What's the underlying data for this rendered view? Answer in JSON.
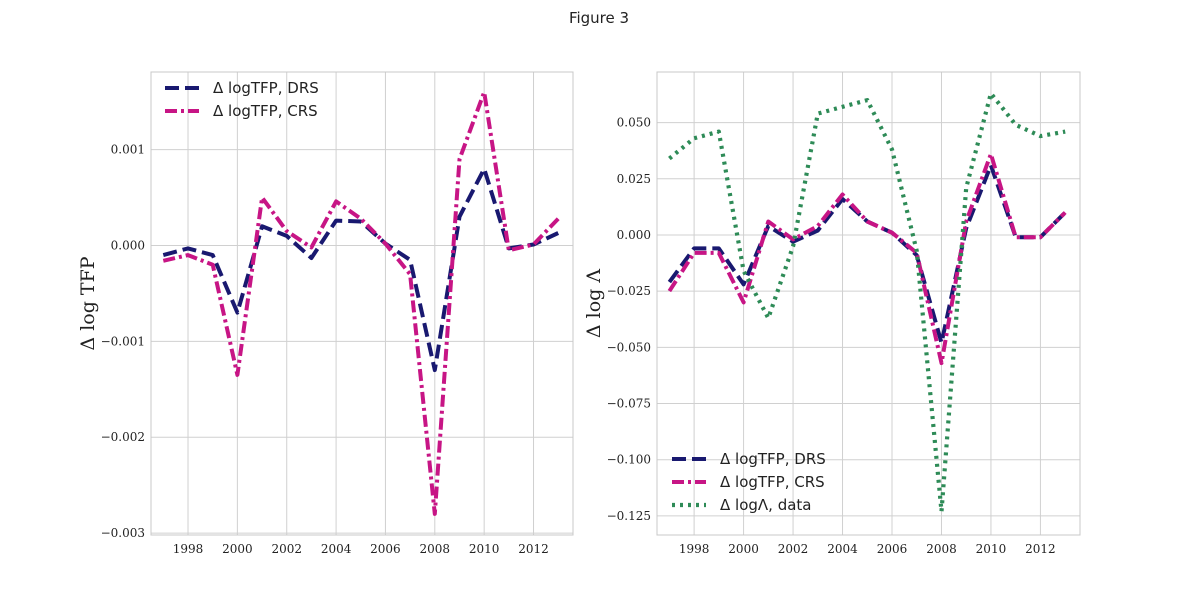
{
  "figure": {
    "title": "Figure 3"
  },
  "chart_data": [
    {
      "type": "line",
      "ylabel": "Δ log TFP",
      "x": [
        1997,
        1998,
        1999,
        2000,
        2001,
        2002,
        2003,
        2004,
        2005,
        2006,
        2007,
        2008,
        2009,
        2010,
        2011,
        2012,
        2013
      ],
      "xticks": [
        1998,
        2000,
        2002,
        2004,
        2006,
        2008,
        2010,
        2012
      ],
      "xtick_labels": [
        "1998",
        "2000",
        "2002",
        "2004",
        "2006",
        "2008",
        "2010",
        "2012"
      ],
      "yticks": [
        -0.003,
        -0.002,
        -0.001,
        0.0,
        0.001
      ],
      "ytick_labels": [
        "−0.003",
        "−0.002",
        "−0.001",
        "0.000",
        "0.001"
      ],
      "xlim": [
        1996.5,
        2013.6
      ],
      "ylim": [
        -0.00302,
        0.00181
      ],
      "grid": true,
      "legend_position": "top-left",
      "series": [
        {
          "name": "Δ logTFP, DRS",
          "color": "#191970",
          "style": "dashed",
          "values": [
            -0.0001,
            -3e-05,
            -0.0001,
            -0.0007,
            0.0002,
            0.0001,
            -0.00013,
            0.00026,
            0.00025,
            2e-05,
            -0.00015,
            -0.0013,
            0.0003,
            0.0008,
            -3e-05,
            1e-05,
            0.00013
          ]
        },
        {
          "name": "Δ logTFP, CRS",
          "color": "#C71585",
          "style": "dashdot",
          "values": [
            -0.00016,
            -0.0001,
            -0.0002,
            -0.00135,
            0.0005,
            0.00015,
            -2e-05,
            0.00046,
            0.00028,
            2e-05,
            -0.0003,
            -0.0028,
            0.0009,
            0.0016,
            -5e-05,
            1e-05,
            0.00028
          ]
        }
      ]
    },
    {
      "type": "line",
      "ylabel": "Δ log Λ",
      "x": [
        1997,
        1998,
        1999,
        2000,
        2001,
        2002,
        2003,
        2004,
        2005,
        2006,
        2007,
        2008,
        2009,
        2010,
        2011,
        2012,
        2013
      ],
      "xticks": [
        1998,
        2000,
        2002,
        2004,
        2006,
        2008,
        2010,
        2012
      ],
      "xtick_labels": [
        "1998",
        "2000",
        "2002",
        "2004",
        "2006",
        "2008",
        "2010",
        "2012"
      ],
      "yticks": [
        -0.125,
        -0.1,
        -0.075,
        -0.05,
        -0.025,
        0.0,
        0.025,
        0.05
      ],
      "ytick_labels": [
        "−0.125",
        "−0.100",
        "−0.075",
        "−0.050",
        "−0.025",
        "0.000",
        "0.025",
        "0.050"
      ],
      "xlim": [
        1996.5,
        2013.6
      ],
      "ylim": [
        -0.1335,
        0.0725
      ],
      "grid": true,
      "legend_position": "bottom-left",
      "series": [
        {
          "name": "Δ logTFP, DRS",
          "color": "#191970",
          "style": "dashed",
          "values": [
            -0.021,
            -0.006,
            -0.006,
            -0.022,
            0.004,
            -0.003,
            0.002,
            0.016,
            0.006,
            0.001,
            -0.009,
            -0.048,
            0.003,
            0.031,
            -0.001,
            -0.001,
            0.01
          ]
        },
        {
          "name": "Δ logTFP, CRS",
          "color": "#C71585",
          "style": "dashdot",
          "values": [
            -0.025,
            -0.008,
            -0.008,
            -0.03,
            0.006,
            -0.002,
            0.004,
            0.018,
            0.006,
            0.001,
            -0.008,
            -0.057,
            0.006,
            0.036,
            -0.001,
            -0.001,
            0.01
          ]
        },
        {
          "name": "Δ logΛ, data",
          "color": "#2E8B57",
          "style": "dotted",
          "values": [
            0.034,
            0.043,
            0.046,
            -0.016,
            -0.037,
            -0.005,
            0.054,
            0.057,
            0.06,
            0.038,
            -0.007,
            -0.123,
            0.021,
            0.063,
            0.049,
            0.044,
            0.046
          ]
        }
      ]
    }
  ]
}
